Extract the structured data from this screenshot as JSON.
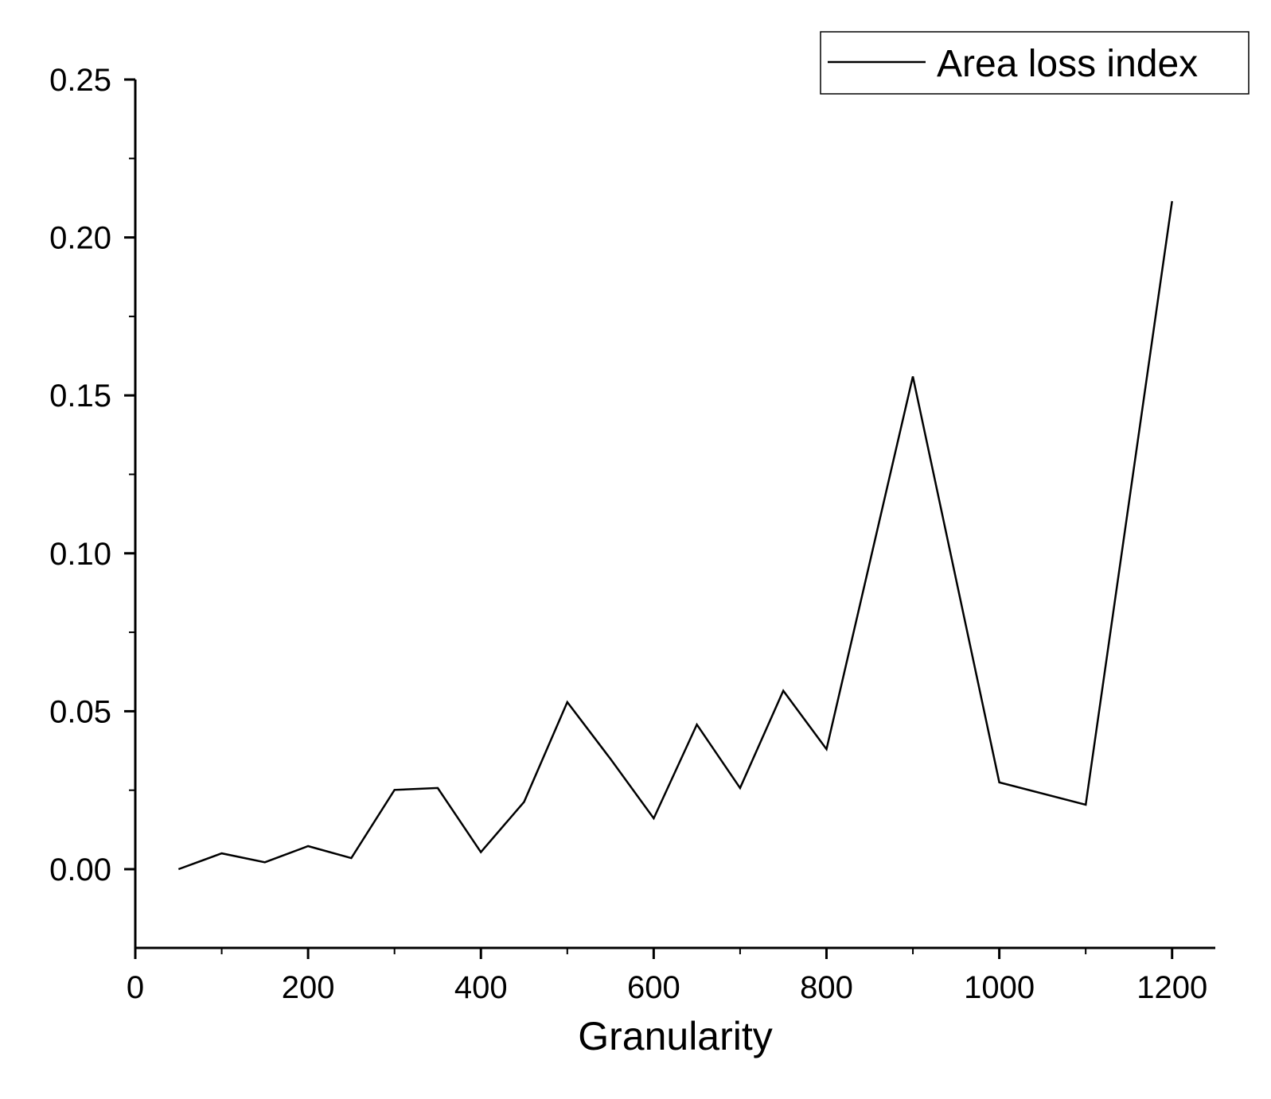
{
  "chart_data": {
    "type": "line",
    "title": "",
    "xlabel": "Granularity",
    "ylabel": "",
    "xlim": [
      0,
      1250
    ],
    "ylim": [
      -0.025,
      0.25
    ],
    "x_ticks": [
      0,
      200,
      400,
      600,
      800,
      1000,
      1200
    ],
    "x_tick_labels": [
      "0",
      "200",
      "400",
      "600",
      "800",
      "1000",
      "1200"
    ],
    "x_minor_ticks": [
      100,
      300,
      500,
      700,
      900,
      1100
    ],
    "y_ticks": [
      0.0,
      0.05,
      0.1,
      0.15,
      0.2,
      0.25
    ],
    "y_tick_labels": [
      "0.00",
      "0.05",
      "0.10",
      "0.15",
      "0.20",
      "0.25"
    ],
    "y_minor_ticks": [
      0.025,
      0.075,
      0.125,
      0.175,
      0.225
    ],
    "grid": false,
    "legend": {
      "position": "top-right",
      "entries": [
        "Area loss index"
      ]
    },
    "series": [
      {
        "name": "Area loss index",
        "color": "#000000",
        "x": [
          50,
          100,
          150,
          200,
          250,
          300,
          350,
          400,
          450,
          500,
          550,
          600,
          650,
          700,
          750,
          800,
          900,
          1000,
          1100,
          1200
        ],
        "y": [
          0.0,
          0.005,
          0.0022,
          0.0073,
          0.0035,
          0.0251,
          0.0257,
          0.0054,
          0.0213,
          0.0529,
          0.0349,
          0.0161,
          0.0458,
          0.0257,
          0.0565,
          0.038,
          0.156,
          0.0275,
          0.0204,
          0.2115
        ]
      }
    ]
  }
}
